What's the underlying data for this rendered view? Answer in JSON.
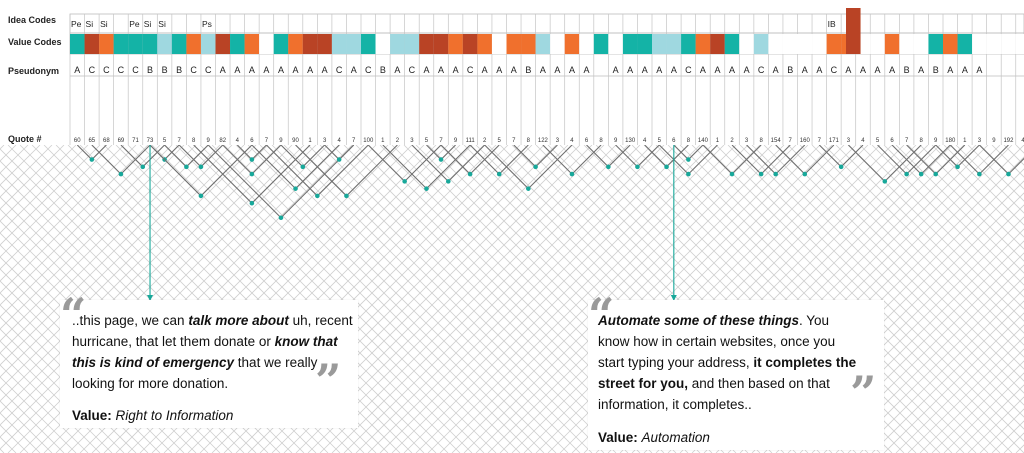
{
  "labels": {
    "idea_codes": "Idea Codes",
    "value_codes": "Value Codes",
    "pseudonym": "Pseudonym",
    "quote_num": "Quote #"
  },
  "colors": {
    "teal": "#14b3a6",
    "light_teal": "#9fd8e0",
    "orange": "#f0702d",
    "rust": "#b94325",
    "line": "#707070",
    "dot": "#18a89a",
    "grid": "#cfcfcf"
  },
  "idea_codes": [
    "Pe",
    "Si",
    "Si",
    "",
    "Pe",
    "Si",
    "Si",
    "",
    "",
    "Ps",
    "",
    "",
    "",
    "",
    "",
    "",
    "",
    "",
    "",
    "",
    "",
    "",
    "",
    "",
    "",
    "",
    "",
    "",
    "",
    "",
    "",
    "",
    "",
    "",
    "",
    "",
    "",
    "",
    "",
    "",
    "",
    "",
    "",
    "",
    "",
    "",
    "",
    "",
    "",
    "",
    "",
    "",
    "IB",
    "",
    "",
    "",
    "",
    "",
    "",
    "",
    "",
    "",
    "",
    "",
    "",
    "",
    "",
    "",
    "",
    "",
    "",
    ""
  ],
  "value_codes": [
    "teal",
    "rust",
    "orange",
    "teal",
    "teal",
    "teal",
    "ltl",
    "teal",
    "orange",
    "ltl",
    "rust",
    "teal",
    "orange",
    "w",
    "teal",
    "orange",
    "rust",
    "rust",
    "ltl",
    "ltl",
    "teal",
    "w",
    "ltl",
    "ltl",
    "rust",
    "rust",
    "orange",
    "rust",
    "orange",
    "w",
    "orange",
    "orange",
    "ltl",
    "w",
    "orange",
    "w",
    "teal",
    "w",
    "teal",
    "teal",
    "ltl",
    "ltl",
    "teal",
    "orange",
    "rust",
    "teal",
    "w",
    "ltl",
    "w",
    "w",
    "w",
    "w",
    "orange",
    "orange",
    "w",
    "w",
    "orange",
    "w",
    "w",
    "teal",
    "orange",
    "teal",
    "w",
    "w",
    "w",
    "w",
    "w",
    "w"
  ],
  "pseudonyms": [
    "A",
    "C",
    "C",
    "C",
    "C",
    "B",
    "B",
    "B",
    "C",
    "C",
    "A",
    "A",
    "A",
    "A",
    "A",
    "A",
    "A",
    "A",
    "C",
    "A",
    "C",
    "B",
    "A",
    "C",
    "A",
    "A",
    "A",
    "C",
    "A",
    "A",
    "A",
    "B",
    "A",
    "A",
    "A",
    "A",
    "",
    "A",
    "A",
    "A",
    "A",
    "A",
    "C",
    "A",
    "A",
    "A",
    "A",
    "C",
    "A",
    "B",
    "A",
    "A",
    "C",
    "A",
    "A",
    "A",
    "A",
    "B",
    "A",
    "B",
    "A",
    "A",
    "A",
    "",
    "",
    "",
    "",
    ""
  ],
  "quote_numbers": [
    "60",
    "65",
    "68",
    "69",
    "71",
    "73",
    "5",
    "7",
    "8",
    "9",
    "82",
    "4",
    "6",
    "7",
    "9",
    "90",
    "1",
    "3",
    "4",
    "7",
    "100",
    "1",
    "2",
    "3",
    "5",
    "7",
    "9",
    "111",
    "2",
    "5",
    "7",
    "8",
    "122",
    "3",
    "4",
    "6",
    "8",
    "9",
    "130",
    "4",
    "5",
    "6",
    "8",
    "140",
    "1",
    "2",
    "3",
    "8",
    "154",
    "7",
    "160",
    "7",
    "171",
    "3",
    "4",
    "5",
    "6",
    "7",
    "8",
    "9",
    "180",
    "1",
    "3",
    "9",
    "192",
    "4",
    "",
    ""
  ],
  "callouts": {
    "left": {
      "p1": "..this page, we can ",
      "b1": "talk more about",
      "p2": " uh, recent hurricane, that let them donate or ",
      "b2": "know that this is kind of emergency",
      "p3": " that we really looking for more donation.",
      "value_label": "Value:",
      "value": "Right to Information"
    },
    "right": {
      "b1": "Automate some of these things",
      "p1": ". You know how in certain websites, once you start typing your address, ",
      "b2": "it completes the street for you,",
      "p2": " and then based on that information, it completes..",
      "value_label": "Value:",
      "value": "Automation"
    }
  }
}
